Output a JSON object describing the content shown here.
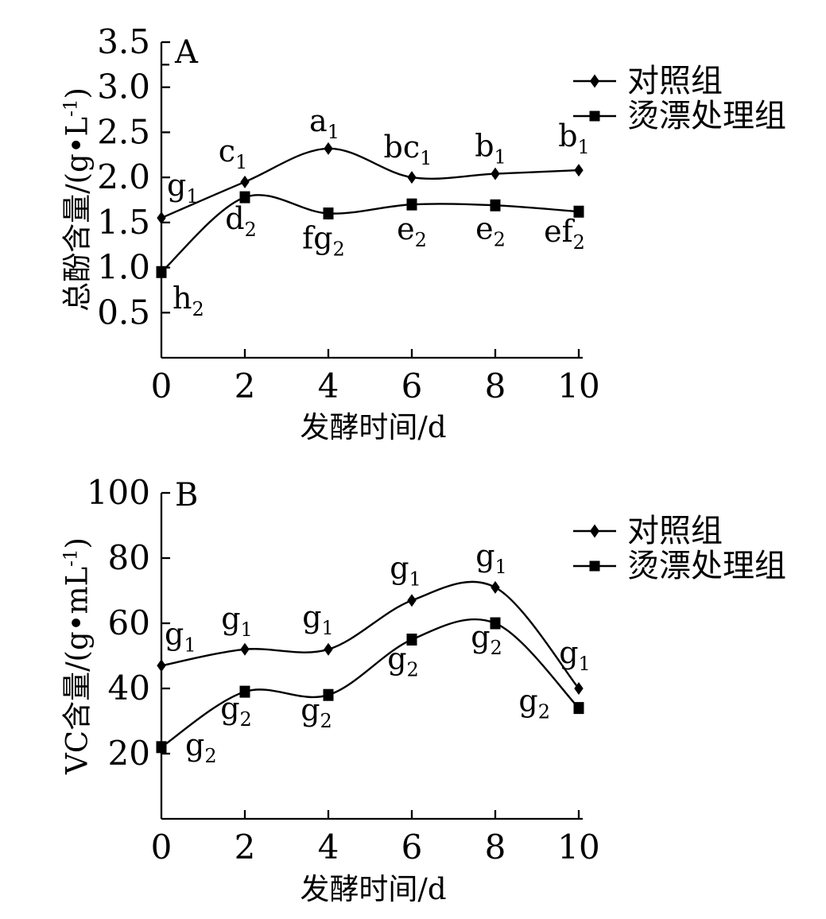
{
  "page": {
    "background": "#ffffff",
    "ink_color": "#000000"
  },
  "chart_data": [
    {
      "type": "line",
      "panel_label": "A",
      "xlabel": "发酵时间/d",
      "ylabel": "总酚含量/(g•L⁻¹)",
      "ylabel_prefix": "总酚含量/(g•L",
      "ylabel_sup": "-1",
      "ylabel_suffix": ")",
      "xlim": [
        0,
        10
      ],
      "ylim": [
        0,
        3.5
      ],
      "x": [
        0,
        2,
        4,
        6,
        8,
        10
      ],
      "xtick_labels": [
        "0",
        "2",
        "4",
        "6",
        "8",
        "10"
      ],
      "yticks": [
        0.5,
        1.0,
        1.5,
        2.0,
        2.5,
        3.0,
        3.5
      ],
      "ytick_labels": [
        "0.5",
        "1.0",
        "1.5",
        "2.0",
        "2.5",
        "3.0",
        "3.5"
      ],
      "minor_yticks": [
        3.25
      ],
      "grid": false,
      "legend_position": "top-right",
      "series": [
        {
          "name": "对照组",
          "marker": "diamond",
          "color": "#000000",
          "values": [
            1.55,
            1.95,
            2.32,
            2.0,
            2.04,
            2.08
          ],
          "point_labels": [
            "g₁",
            "c₁",
            "a₁",
            "bc₁",
            "b₁",
            "b₁"
          ]
        },
        {
          "name": "烫漂处理组",
          "marker": "square",
          "color": "#000000",
          "values": [
            0.95,
            1.78,
            1.6,
            1.7,
            1.69,
            1.62
          ],
          "point_labels": [
            "h₂",
            "d₂",
            "fg₂",
            "e₂",
            "e₂",
            "ef₂"
          ]
        }
      ]
    },
    {
      "type": "line",
      "panel_label": "B",
      "xlabel": "发酵时间/d",
      "ylabel": "VC含量/(g•mL⁻¹)",
      "ylabel_prefix": "VC含量/(g•mL",
      "ylabel_sup": "-1",
      "ylabel_suffix": ")",
      "xlim": [
        0,
        10
      ],
      "ylim": [
        0,
        100
      ],
      "x": [
        0,
        2,
        4,
        6,
        8,
        10
      ],
      "xtick_labels": [
        "0",
        "2",
        "4",
        "6",
        "8",
        "10"
      ],
      "yticks": [
        20,
        40,
        60,
        80,
        100
      ],
      "ytick_labels": [
        "20",
        "40",
        "60",
        "80",
        "100"
      ],
      "minor_yticks": [],
      "grid": false,
      "legend_position": "top-right",
      "series": [
        {
          "name": "对照组",
          "marker": "diamond",
          "color": "#000000",
          "values": [
            47,
            52,
            52,
            67,
            71,
            40
          ],
          "point_labels": [
            "g₁",
            "g₁",
            "g₁",
            "g₁",
            "g₁",
            "g₁"
          ]
        },
        {
          "name": "烫漂处理组",
          "marker": "square",
          "color": "#000000",
          "values": [
            22,
            39,
            38,
            55,
            60,
            34
          ],
          "point_labels": [
            "g₂",
            "g₂",
            "g₂",
            "g₂",
            "g₂",
            "g₂"
          ]
        }
      ]
    }
  ]
}
